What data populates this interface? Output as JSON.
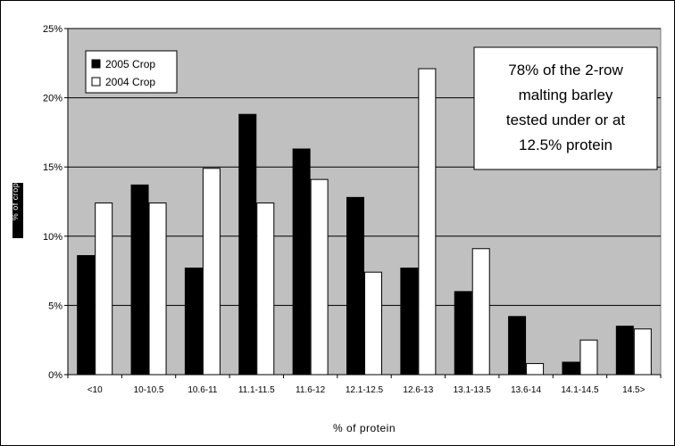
{
  "chart_data": {
    "type": "bar",
    "title": "",
    "xlabel": "% of protein",
    "ylabel": "% of crop",
    "ylim": [
      0,
      25
    ],
    "yticks": [
      "0%",
      "5%",
      "10%",
      "15%",
      "20%",
      "25%"
    ],
    "categories": [
      "<10",
      "10-10.5",
      "10.6-11",
      "11.1-11.5",
      "11.6-12",
      "12.1-12.5",
      "12.6-13",
      "13.1-13.5",
      "13.6-14",
      "14.1-14.5",
      "14.5>"
    ],
    "series": [
      {
        "name": "2005 Crop",
        "color": "#000000",
        "values": [
          8.6,
          13.7,
          7.7,
          18.8,
          16.3,
          12.8,
          7.7,
          6.0,
          4.2,
          0.9,
          3.5
        ]
      },
      {
        "name": "2004 Crop",
        "color": "#ffffff",
        "values": [
          12.4,
          12.4,
          14.9,
          12.4,
          14.1,
          7.4,
          22.1,
          9.1,
          0.8,
          2.5,
          3.3
        ]
      }
    ],
    "legend": {
      "placement": "top-left"
    },
    "grid": true,
    "plot_background": "#c0c0c0",
    "annotation": [
      "78% of the 2-row",
      "malting barley",
      "tested under or at",
      "12.5% protein"
    ]
  }
}
